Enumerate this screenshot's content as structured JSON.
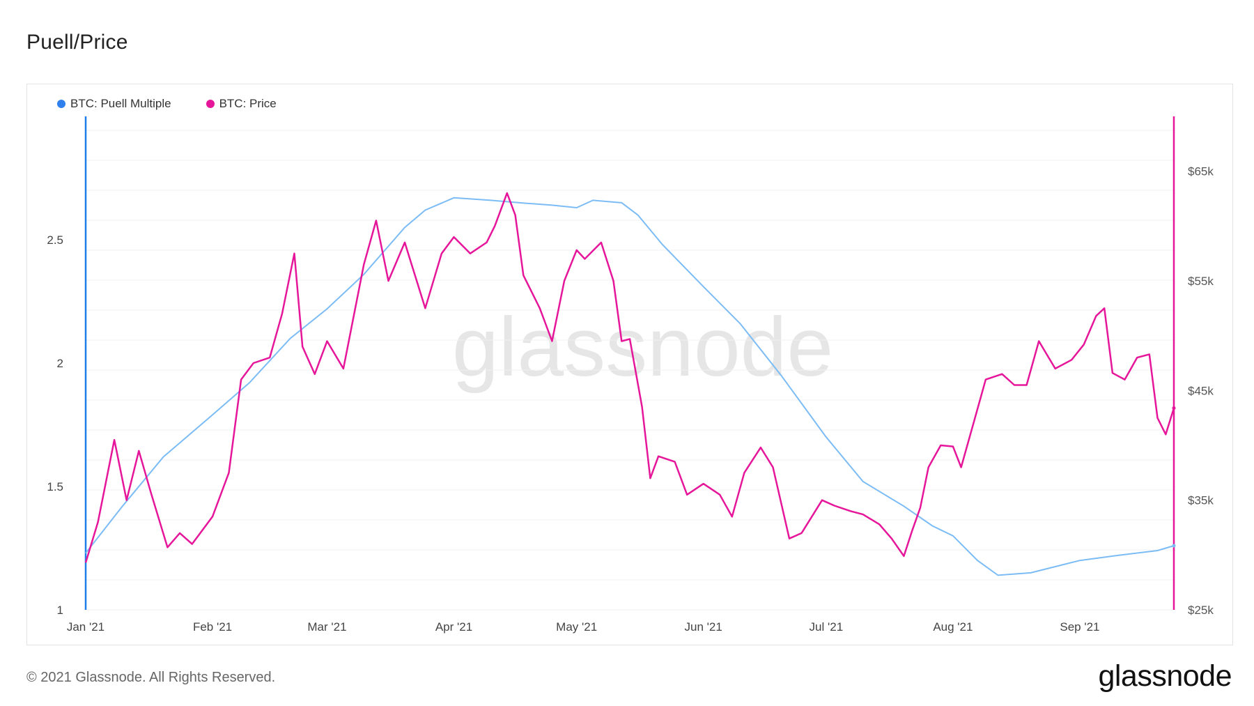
{
  "page": {
    "title": "Puell/Price",
    "copyright": "© 2021 Glassnode. All Rights Reserved.",
    "logo_text": "glassnode",
    "watermark": "glassnode"
  },
  "colors": {
    "puell": "#2f80ed",
    "puell_line": "#7cbcf5",
    "price": "#e6169a",
    "grid": "#f0f0f0",
    "axis_left": "#1f7fe8",
    "axis_right": "#e6169a"
  },
  "chart_data": {
    "type": "line",
    "title": "Puell/Price",
    "legend_position": "top-left",
    "grid": true,
    "x_ticks": [
      "Jan '21",
      "Feb '21",
      "Mar '21",
      "Apr '21",
      "May '21",
      "Jun '21",
      "Jul '21",
      "Aug '21",
      "Sep '21"
    ],
    "x_range": [
      "2021-01-01",
      "2021-09-24"
    ],
    "y_left": {
      "ticks": [
        "1",
        "1.5",
        "2",
        "2.5"
      ],
      "range": [
        1,
        3.0
      ]
    },
    "y_right": {
      "ticks": [
        "$25k",
        "$35k",
        "$45k",
        "$55k",
        "$65k"
      ],
      "range": [
        25000,
        70000
      ]
    },
    "series": [
      {
        "name": "BTC: Puell Multiple",
        "axis": "left",
        "dates": [
          "2021-01-01",
          "2021-01-10",
          "2021-01-20",
          "2021-02-01",
          "2021-02-10",
          "2021-02-20",
          "2021-03-01",
          "2021-03-10",
          "2021-03-20",
          "2021-03-25",
          "2021-04-01",
          "2021-04-10",
          "2021-04-17",
          "2021-04-25",
          "2021-05-01",
          "2021-05-05",
          "2021-05-12",
          "2021-05-16",
          "2021-05-22",
          "2021-06-01",
          "2021-06-10",
          "2021-06-20",
          "2021-07-01",
          "2021-07-10",
          "2021-07-20",
          "2021-07-27",
          "2021-08-01",
          "2021-08-07",
          "2021-08-12",
          "2021-08-20",
          "2021-09-01",
          "2021-09-10",
          "2021-09-20",
          "2021-09-24"
        ],
        "values": [
          1.23,
          1.42,
          1.62,
          1.79,
          1.92,
          2.1,
          2.22,
          2.36,
          2.55,
          2.62,
          2.67,
          2.66,
          2.65,
          2.64,
          2.63,
          2.66,
          2.65,
          2.6,
          2.48,
          2.31,
          2.16,
          1.95,
          1.7,
          1.52,
          1.42,
          1.34,
          1.3,
          1.2,
          1.14,
          1.15,
          1.2,
          1.22,
          1.24,
          1.26
        ]
      },
      {
        "name": "BTC: Price",
        "axis": "right",
        "dates": [
          "2021-01-01",
          "2021-01-04",
          "2021-01-08",
          "2021-01-11",
          "2021-01-14",
          "2021-01-17",
          "2021-01-21",
          "2021-01-24",
          "2021-01-27",
          "2021-02-01",
          "2021-02-05",
          "2021-02-08",
          "2021-02-11",
          "2021-02-15",
          "2021-02-18",
          "2021-02-21",
          "2021-02-23",
          "2021-02-26",
          "2021-03-01",
          "2021-03-05",
          "2021-03-10",
          "2021-03-13",
          "2021-03-16",
          "2021-03-20",
          "2021-03-25",
          "2021-03-29",
          "2021-04-01",
          "2021-04-05",
          "2021-04-09",
          "2021-04-11",
          "2021-04-14",
          "2021-04-16",
          "2021-04-18",
          "2021-04-22",
          "2021-04-25",
          "2021-04-28",
          "2021-05-01",
          "2021-05-03",
          "2021-05-07",
          "2021-05-10",
          "2021-05-12",
          "2021-05-14",
          "2021-05-17",
          "2021-05-19",
          "2021-05-21",
          "2021-05-25",
          "2021-05-28",
          "2021-06-01",
          "2021-06-05",
          "2021-06-08",
          "2021-06-11",
          "2021-06-15",
          "2021-06-18",
          "2021-06-22",
          "2021-06-25",
          "2021-06-30",
          "2021-07-03",
          "2021-07-07",
          "2021-07-10",
          "2021-07-14",
          "2021-07-17",
          "2021-07-20",
          "2021-07-22",
          "2021-07-24",
          "2021-07-26",
          "2021-07-29",
          "2021-08-01",
          "2021-08-03",
          "2021-08-06",
          "2021-08-09",
          "2021-08-13",
          "2021-08-16",
          "2021-08-19",
          "2021-08-22",
          "2021-08-26",
          "2021-08-30",
          "2021-09-02",
          "2021-09-05",
          "2021-09-07",
          "2021-09-09",
          "2021-09-12",
          "2021-09-15",
          "2021-09-18",
          "2021-09-20",
          "2021-09-22",
          "2021-09-24"
        ],
        "values": [
          29300,
          33000,
          40500,
          35000,
          39500,
          35600,
          30700,
          32000,
          31000,
          33500,
          37500,
          46000,
          47500,
          48000,
          52000,
          57500,
          49000,
          46500,
          49500,
          47000,
          56500,
          60500,
          55000,
          58500,
          52500,
          57500,
          59000,
          57500,
          58500,
          60000,
          63000,
          61000,
          55500,
          52500,
          49500,
          55000,
          57800,
          57000,
          58500,
          55000,
          49500,
          49700,
          43500,
          37000,
          39000,
          38500,
          35500,
          36500,
          35500,
          33500,
          37500,
          39800,
          38000,
          31500,
          32000,
          35000,
          34500,
          34000,
          33700,
          32800,
          31500,
          29900,
          32200,
          34300,
          38000,
          40000,
          39900,
          38000,
          42000,
          46000,
          46500,
          45500,
          45500,
          49500,
          47000,
          47800,
          49200,
          51800,
          52500,
          46600,
          46000,
          48000,
          48300,
          42500,
          41000,
          43400
        ]
      }
    ]
  }
}
